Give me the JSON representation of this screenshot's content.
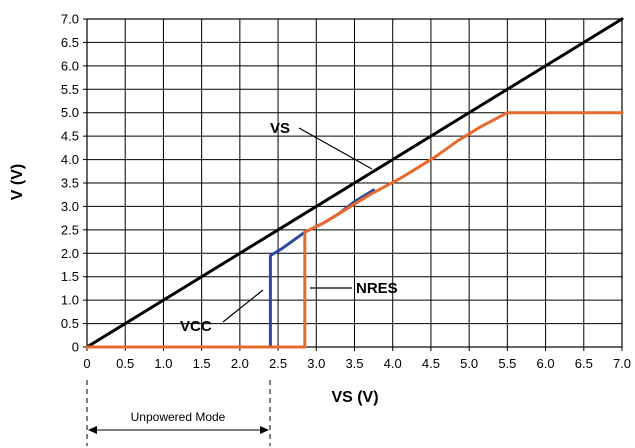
{
  "chart_data": {
    "type": "line",
    "xlabel": "VS (V)",
    "ylabel": "V (V)",
    "xlim": [
      0,
      7.0
    ],
    "ylim": [
      0,
      7.0
    ],
    "grid": true,
    "x_ticks": [
      "0",
      "0.5",
      "1.0",
      "1.5",
      "2.0",
      "2.5",
      "3.0",
      "3.5",
      "4.0",
      "4.5",
      "5.0",
      "5.5",
      "6.0",
      "6.5",
      "7.0"
    ],
    "y_ticks": [
      "0",
      "0.5",
      "1.0",
      "1.5",
      "2.0",
      "2.5",
      "3.0",
      "3.5",
      "4.0",
      "4.5",
      "5.0",
      "5.5",
      "6.0",
      "6.5",
      "7.0"
    ],
    "series": [
      {
        "name": "VS",
        "color": "#000000",
        "x": [
          0,
          0.75,
          2.45,
          4.5,
          4.75,
          6.25,
          7.0
        ],
        "y": [
          0,
          0.75,
          2.45,
          4.5,
          4.75,
          6.25,
          7.0
        ]
      },
      {
        "name": "VCC",
        "color": "#2a4ba0",
        "x": [
          0,
          2.4,
          2.4,
          2.55,
          2.85,
          3.1,
          3.3,
          3.5,
          3.75
        ],
        "y": [
          0,
          0,
          1.95,
          2.1,
          2.45,
          2.65,
          2.85,
          3.1,
          3.35
        ]
      },
      {
        "name": "NRES",
        "color": "#e8692c",
        "x": [
          0,
          2.85,
          2.85,
          3.1,
          3.4,
          3.7,
          4.1,
          4.55,
          4.85,
          5.15,
          5.5,
          7.0
        ],
        "y": [
          0,
          0,
          2.45,
          2.65,
          2.95,
          3.25,
          3.6,
          4.05,
          4.4,
          4.7,
          5.0,
          5.0
        ]
      }
    ],
    "annotations": [
      {
        "text": "VS"
      },
      {
        "text": "VCC"
      },
      {
        "text": "NRES"
      }
    ],
    "region": {
      "label": "Unpowered Mode",
      "from": 0,
      "to": 2.4
    }
  }
}
